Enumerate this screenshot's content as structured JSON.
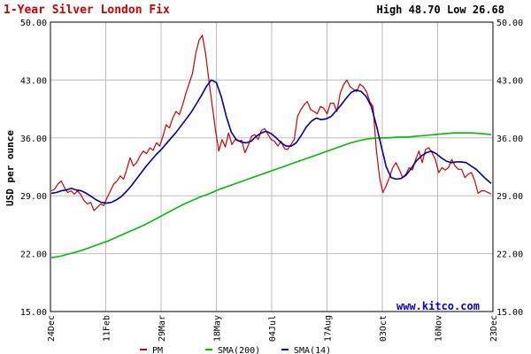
{
  "chart_data": {
    "type": "line",
    "title": "1-Year Silver London Fix",
    "high_low": "High 48.70 Low 26.68",
    "ylabel": "USD per ounce",
    "watermark_brand": "www.kitco.com",
    "ylim": [
      15,
      50
    ],
    "y_ticks": [
      15,
      22,
      29,
      36,
      43,
      50
    ],
    "y_tick_labels": [
      "15.00",
      "22.00",
      "29.00",
      "36.00",
      "43.00",
      "50.00"
    ],
    "x_tick_labels": [
      "24Dec",
      "11Feb",
      "29Mar",
      "18May",
      "04Jul",
      "17Aug",
      "03Oct",
      "16Nov",
      "23Dec"
    ],
    "grid": true,
    "legend_placement": "bottom",
    "colors": {
      "title": "#cc0000",
      "pm": "#cc0000",
      "sma200": "#00bb00",
      "sma14": "#000099",
      "brand": "#0000cc",
      "grid": "#bbbbbb",
      "frame": "#000000"
    },
    "series": [
      {
        "name": "PM",
        "color": "#cc0000",
        "values": [
          29.6,
          29.8,
          30.4,
          30.8,
          30.0,
          29.4,
          29.6,
          29.2,
          29.6,
          29.1,
          28.4,
          28.0,
          28.2,
          27.2,
          27.6,
          28.0,
          27.8,
          28.8,
          29.6,
          30.4,
          30.8,
          31.4,
          31.0,
          32.2,
          33.6,
          32.6,
          33.0,
          33.8,
          34.4,
          34.1,
          34.8,
          34.5,
          35.4,
          35.0,
          36.2,
          37.6,
          37.2,
          38.4,
          39.2,
          38.8,
          40.0,
          41.4,
          42.6,
          43.8,
          46.2,
          47.8,
          48.4,
          46.2,
          43.0,
          40.0,
          37.0,
          34.4,
          35.8,
          34.9,
          36.6,
          35.2,
          35.8,
          35.6,
          35.7,
          34.2,
          35.1,
          36.2,
          36.4,
          35.8,
          36.9,
          37.1,
          36.4,
          35.8,
          35.6,
          35.0,
          35.6,
          34.7,
          34.6,
          35.2,
          35.8,
          38.6,
          39.4,
          40.0,
          40.4,
          39.4,
          39.2,
          38.9,
          39.8,
          39.6,
          38.9,
          40.2,
          40.2,
          39.2,
          41.4,
          42.4,
          43.0,
          42.2,
          41.9,
          41.6,
          42.5,
          42.2,
          41.6,
          40.4,
          39.8,
          34.6,
          31.2,
          29.4,
          30.2,
          31.2,
          32.4,
          33.0,
          32.2,
          31.2,
          31.6,
          32.4,
          32.1,
          33.4,
          34.4,
          33.0,
          34.6,
          34.8,
          34.2,
          33.4,
          31.8,
          32.4,
          32.1,
          32.4,
          33.4,
          32.6,
          32.2,
          32.2,
          31.2,
          31.6,
          31.8,
          30.8,
          29.3,
          29.6,
          29.6,
          29.4,
          29.2
        ]
      },
      {
        "name": "SMA(200)",
        "color": "#00bb00",
        "values": [
          21.5,
          21.7,
          22.0,
          22.3,
          22.7,
          23.1,
          23.5,
          24.0,
          24.5,
          25.0,
          25.5,
          26.1,
          26.7,
          27.3,
          27.9,
          28.4,
          28.9,
          29.3,
          29.8,
          30.2,
          30.6,
          31.0,
          31.4,
          31.8,
          32.2,
          32.6,
          33.0,
          33.4,
          33.8,
          34.2,
          34.6,
          35.0,
          35.4,
          35.7,
          35.9,
          36.0,
          36.0,
          36.1,
          36.1,
          36.2,
          36.3,
          36.4,
          36.5,
          36.6,
          36.6,
          36.6,
          36.5,
          36.4
        ]
      },
      {
        "name": "SMA(14)",
        "color": "#000099",
        "values": [
          29.3,
          29.4,
          29.6,
          29.7,
          29.9,
          29.7,
          29.6,
          29.3,
          28.9,
          28.5,
          28.2,
          28.1,
          28.2,
          28.5,
          28.9,
          29.5,
          30.2,
          31.0,
          31.8,
          32.6,
          33.3,
          34.0,
          34.6,
          35.3,
          36.0,
          36.7,
          37.5,
          38.3,
          39.1,
          40.1,
          41.1,
          42.2,
          43.0,
          42.7,
          41.0,
          38.6,
          36.7,
          35.8,
          35.5,
          35.4,
          35.6,
          36.2,
          36.6,
          36.8,
          36.5,
          36.0,
          35.4,
          35.0,
          35.0,
          35.4,
          36.3,
          37.3,
          38.0,
          38.4,
          38.2,
          38.3,
          38.6,
          39.3,
          40.0,
          40.8,
          41.5,
          41.8,
          41.6,
          41.0,
          39.8,
          37.6,
          35.0,
          32.5,
          31.2,
          31.0,
          31.1,
          31.5,
          32.3,
          33.2,
          33.8,
          34.2,
          34.4,
          34.1,
          33.6,
          33.2,
          33.0,
          33.1,
          33.1,
          33.0,
          32.6,
          32.2,
          31.6,
          31.0,
          30.5
        ]
      }
    ]
  }
}
